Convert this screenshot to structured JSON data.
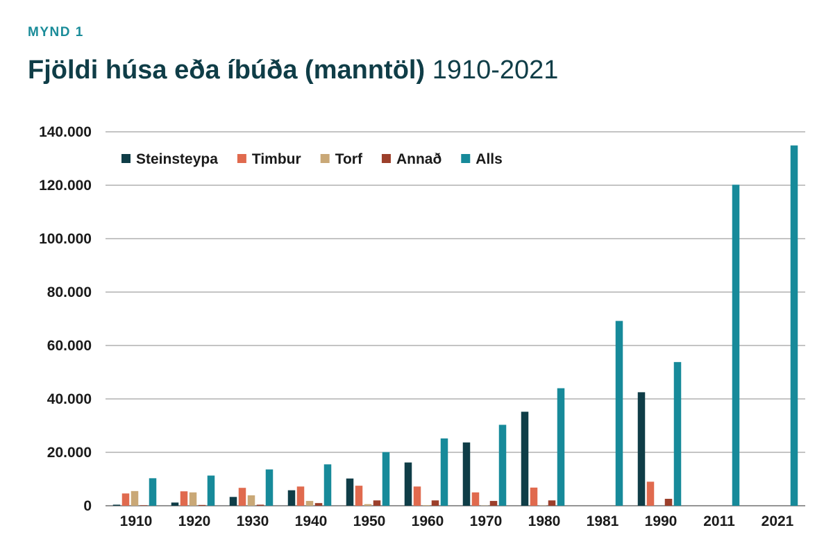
{
  "figure": {
    "kicker": "MYND 1",
    "title_bold": "Fjöldi húsa eða íbúða (manntöl)",
    "title_light": "1910-2021"
  },
  "chart_data": {
    "type": "bar",
    "title": "Fjöldi húsa eða íbúða (manntöl) 1910-2021",
    "xlabel": "",
    "ylabel": "",
    "ylim": [
      0,
      140000
    ],
    "yticks": [
      0,
      20000,
      40000,
      60000,
      80000,
      100000,
      120000,
      140000
    ],
    "ytick_labels": [
      "0",
      "20.000",
      "40.000",
      "60.000",
      "80.000",
      "100.000",
      "120.000",
      "140.000"
    ],
    "grid": true,
    "legend_position": "top-left",
    "categories": [
      "1910",
      "1920",
      "1930",
      "1940",
      "1950",
      "1960",
      "1970",
      "1980",
      "1981",
      "1990",
      "2011",
      "2021"
    ],
    "series": [
      {
        "name": "Steinsteypa",
        "color": "#0f3d47",
        "values": [
          400,
          1200,
          3300,
          5800,
          10200,
          16200,
          23700,
          35200,
          null,
          42500,
          null,
          null
        ]
      },
      {
        "name": "Timbur",
        "color": "#e06a4e",
        "values": [
          4600,
          5400,
          6700,
          7200,
          7500,
          7200,
          5000,
          6800,
          null,
          9000,
          null,
          null
        ]
      },
      {
        "name": "Torf",
        "color": "#c9a877",
        "values": [
          5500,
          5000,
          3900,
          1800,
          600,
          200,
          100,
          100,
          null,
          null,
          null,
          null
        ]
      },
      {
        "name": "Annað",
        "color": "#9c3f2b",
        "values": [
          200,
          300,
          400,
          1000,
          2000,
          2000,
          1800,
          2000,
          null,
          2600,
          null,
          null
        ]
      },
      {
        "name": "Alls",
        "color": "#178a9a",
        "values": [
          10300,
          11300,
          13600,
          15500,
          20100,
          25200,
          30300,
          44000,
          69200,
          53800,
          120200,
          134900
        ]
      }
    ]
  }
}
